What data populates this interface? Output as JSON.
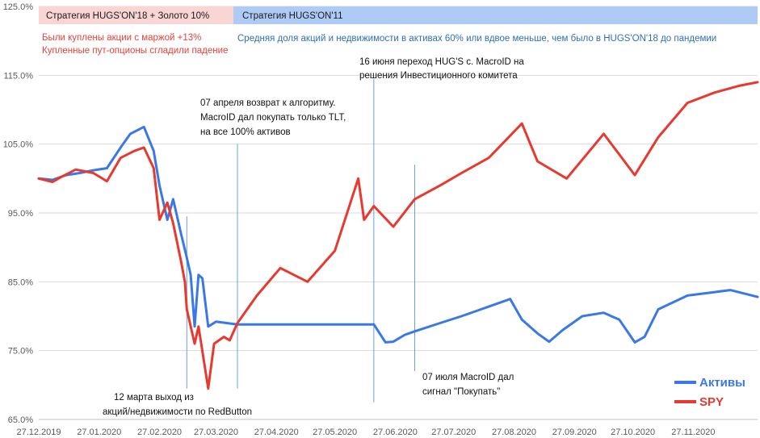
{
  "colors": {
    "activ": "#3b78e7",
    "spy": "#e8392f",
    "band1": "#f9d5d3",
    "band2": "#aecbf5",
    "annotation_line": "#6f9fd8"
  },
  "bands": {
    "left": "Стратегия HUGS'ON'18 + Золото 10%",
    "right": "Стратегия HUGS'ON'11"
  },
  "notes": {
    "red_line1": "Были куплены акции с маржой +13%",
    "red_line2": "Купленные пут-опционы сгладили падение",
    "blue_line": "Средняя доля акций и недвижимости в активах 60% или вдвое меньше, чем было в HUGS'ON'18 до пандемии"
  },
  "annotations": {
    "april7": [
      "07 апреля возврат к алгоритму.",
      "MacroID дал покупать только TLT,",
      "на все 100% активов"
    ],
    "june16": [
      "16 июня переход HUG'S с. MacroID на",
      "решения Инвестиционного комитета"
    ],
    "july7": [
      "07 июля MacroID дал",
      "сигнал \"Покупать\""
    ],
    "march12": [
      "12 марта выход из",
      "акций/недвижимости по RedButton"
    ]
  },
  "chart_data": {
    "type": "line",
    "title": "",
    "xlabel": "",
    "ylabel": "",
    "ylim": [
      65,
      125
    ],
    "yticks": [
      "65.0%",
      "75.0%",
      "85.0%",
      "95.0%",
      "105.0%",
      "115.0%",
      "125.0%"
    ],
    "xticks": [
      "27.12.2019",
      "27.01.2020",
      "27.02.2020",
      "27.03.2020",
      "27.04.2020",
      "27.05.2020",
      "27.06.2020",
      "27.07.2020",
      "27.08.2020",
      "27.09.2020",
      "27.10.2020",
      "27.11.2020"
    ],
    "xrange": [
      "2019-12-27",
      "2020-12-30"
    ],
    "legend_position": "bottom-right",
    "series": [
      {
        "name": "Активы",
        "points": [
          [
            "2019-12-27",
            100
          ],
          [
            "2020-01-03",
            99.8
          ],
          [
            "2020-01-10",
            100.5
          ],
          [
            "2020-01-17",
            100.8
          ],
          [
            "2020-01-24",
            101.2
          ],
          [
            "2020-01-31",
            101.5
          ],
          [
            "2020-02-07",
            104.5
          ],
          [
            "2020-02-12",
            106.5
          ],
          [
            "2020-02-19",
            107.5
          ],
          [
            "2020-02-24",
            104
          ],
          [
            "2020-02-27",
            99
          ],
          [
            "2020-03-02",
            94
          ],
          [
            "2020-03-05",
            97
          ],
          [
            "2020-03-09",
            92
          ],
          [
            "2020-03-12",
            88.5
          ],
          [
            "2020-03-14",
            86
          ],
          [
            "2020-03-16",
            78.5
          ],
          [
            "2020-03-18",
            86
          ],
          [
            "2020-03-20",
            85.5
          ],
          [
            "2020-03-23",
            78.5
          ],
          [
            "2020-03-27",
            79.2
          ],
          [
            "2020-04-07",
            78.8
          ],
          [
            "2020-04-20",
            78.8
          ],
          [
            "2020-05-10",
            78.8
          ],
          [
            "2020-05-31",
            78.8
          ],
          [
            "2020-06-16",
            78.8
          ],
          [
            "2020-06-22",
            76.2
          ],
          [
            "2020-06-26",
            76.3
          ],
          [
            "2020-07-02",
            77.3
          ],
          [
            "2020-07-07",
            77.8
          ],
          [
            "2020-07-20",
            79
          ],
          [
            "2020-07-31",
            80
          ],
          [
            "2020-08-10",
            81
          ],
          [
            "2020-08-25",
            82.5
          ],
          [
            "2020-08-31",
            79.5
          ],
          [
            "2020-09-08",
            77.5
          ],
          [
            "2020-09-14",
            76.3
          ],
          [
            "2020-09-21",
            78
          ],
          [
            "2020-10-01",
            80
          ],
          [
            "2020-10-12",
            80.5
          ],
          [
            "2020-10-20",
            79.5
          ],
          [
            "2020-10-28",
            76.2
          ],
          [
            "2020-11-02",
            77
          ],
          [
            "2020-11-09",
            81
          ],
          [
            "2020-11-24",
            83
          ],
          [
            "2020-12-08",
            83.5
          ],
          [
            "2020-12-16",
            83.8
          ],
          [
            "2020-12-30",
            82.8
          ]
        ]
      },
      {
        "name": "SPY",
        "points": [
          [
            "2019-12-27",
            100
          ],
          [
            "2020-01-03",
            99.5
          ],
          [
            "2020-01-08",
            100.3
          ],
          [
            "2020-01-15",
            101.3
          ],
          [
            "2020-01-24",
            100.8
          ],
          [
            "2020-01-31",
            99.6
          ],
          [
            "2020-02-07",
            103
          ],
          [
            "2020-02-14",
            104
          ],
          [
            "2020-02-19",
            104.5
          ],
          [
            "2020-02-24",
            101.5
          ],
          [
            "2020-02-27",
            94
          ],
          [
            "2020-03-02",
            96.5
          ],
          [
            "2020-03-05",
            93.5
          ],
          [
            "2020-03-09",
            88
          ],
          [
            "2020-03-11",
            85
          ],
          [
            "2020-03-12",
            81
          ],
          [
            "2020-03-16",
            76
          ],
          [
            "2020-03-18",
            78.5
          ],
          [
            "2020-03-23",
            69.5
          ],
          [
            "2020-03-26",
            76
          ],
          [
            "2020-03-31",
            77
          ],
          [
            "2020-04-03",
            76.5
          ],
          [
            "2020-04-07",
            79
          ],
          [
            "2020-04-17",
            83
          ],
          [
            "2020-04-29",
            87
          ],
          [
            "2020-05-13",
            85
          ],
          [
            "2020-05-27",
            89.5
          ],
          [
            "2020-06-08",
            100
          ],
          [
            "2020-06-11",
            94
          ],
          [
            "2020-06-16",
            96
          ],
          [
            "2020-06-26",
            93
          ],
          [
            "2020-07-07",
            97
          ],
          [
            "2020-07-20",
            99
          ],
          [
            "2020-07-31",
            100.8
          ],
          [
            "2020-08-14",
            103
          ],
          [
            "2020-08-31",
            108
          ],
          [
            "2020-09-08",
            102.5
          ],
          [
            "2020-09-23",
            100
          ],
          [
            "2020-10-12",
            106.5
          ],
          [
            "2020-10-28",
            100.5
          ],
          [
            "2020-11-09",
            106
          ],
          [
            "2020-11-24",
            111
          ],
          [
            "2020-12-08",
            112.5
          ],
          [
            "2020-12-21",
            113.5
          ],
          [
            "2020-12-30",
            114
          ]
        ]
      }
    ],
    "vertical_markers": [
      {
        "date": "2020-03-12",
        "y_from": 69.5,
        "y_to": 94.5
      },
      {
        "date": "2020-04-07",
        "y_from": 69.5,
        "y_to": 105
      },
      {
        "date": "2020-06-16",
        "y_from": 67.5,
        "y_to": 114.5
      },
      {
        "date": "2020-07-07",
        "y_from": 72,
        "y_to": 102
      }
    ]
  }
}
